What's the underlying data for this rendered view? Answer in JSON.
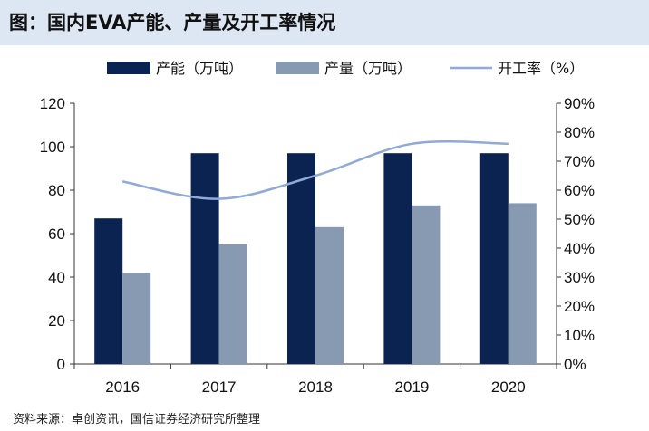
{
  "title": "图：国内EVA产能、产量及开工率情况",
  "source": "资料来源：卓创资讯，国信证券经济研究所整理",
  "chart_data": {
    "type": "bar",
    "categories": [
      "2016",
      "2017",
      "2018",
      "2019",
      "2020"
    ],
    "series": [
      {
        "name": "产能（万吨）",
        "type": "bar",
        "axis": "left",
        "color": "#0b2350",
        "values": [
          67,
          97,
          97,
          97,
          97
        ]
      },
      {
        "name": "产量（万吨）",
        "type": "bar",
        "axis": "left",
        "color": "#8899b2",
        "values": [
          42,
          55,
          63,
          73,
          74
        ]
      },
      {
        "name": "开工率（%）",
        "type": "line",
        "axis": "right",
        "color": "#8fa9d8",
        "values": [
          63,
          57,
          65,
          76,
          76
        ]
      }
    ],
    "y_left": {
      "min": 0,
      "max": 120,
      "ticks": [
        "0",
        "20",
        "40",
        "60",
        "80",
        "100",
        "120"
      ]
    },
    "y_right": {
      "min": 0,
      "max": 90,
      "ticks": [
        "0%",
        "10%",
        "20%",
        "30%",
        "40%",
        "50%",
        "60%",
        "70%",
        "80%",
        "90%"
      ]
    },
    "legend_position": "top",
    "grid": false
  }
}
